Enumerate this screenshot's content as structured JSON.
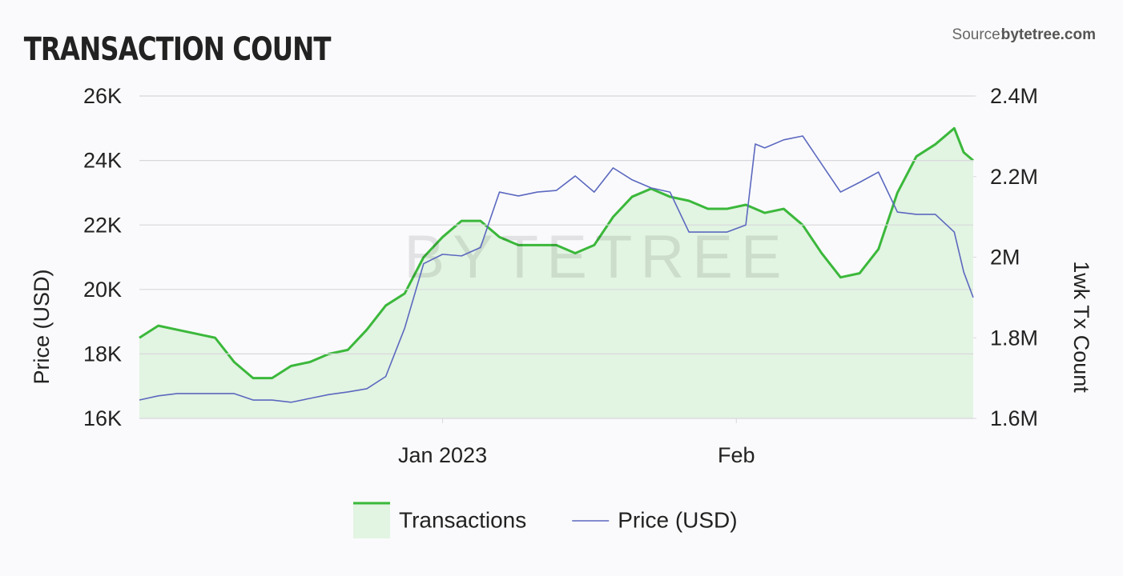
{
  "chart_data": {
    "type": "dual-axis-area-line",
    "title": "TRANSACTION COUNT",
    "source_prefix": "Source:",
    "source_name": "bytetree.com",
    "watermark": "BYTETREE",
    "y_label": "Price (USD)",
    "y2_label": "1wk Tx Count",
    "x": [
      -32,
      -30,
      -28,
      -26,
      -24,
      -22,
      -20,
      -18,
      -16,
      -14,
      -12,
      -10,
      -8,
      -6,
      -4,
      -2,
      0,
      2,
      4,
      6,
      8,
      10,
      12,
      14,
      16,
      18,
      20,
      22,
      24,
      26,
      28,
      30,
      32,
      33,
      34,
      36,
      38,
      40,
      42,
      44,
      46,
      48,
      50,
      52,
      54,
      55,
      56
    ],
    "xlim": [
      -32,
      56
    ],
    "xticks": [
      {
        "value": 0,
        "label": "Jan 2023"
      },
      {
        "value": 31,
        "label": "Feb"
      }
    ],
    "ylim": [
      16000,
      26000
    ],
    "yticks": [
      {
        "value": 16000,
        "label": "16K"
      },
      {
        "value": 18000,
        "label": "18K"
      },
      {
        "value": 20000,
        "label": "20K"
      },
      {
        "value": 22000,
        "label": "22K"
      },
      {
        "value": 24000,
        "label": "24K"
      },
      {
        "value": 26000,
        "label": "26K"
      }
    ],
    "y2lim": [
      1600000,
      2400000
    ],
    "y2ticks": [
      {
        "value": 1600000,
        "label": "1.6M"
      },
      {
        "value": 1800000,
        "label": "1.8M"
      },
      {
        "value": 2000000,
        "label": "2M"
      },
      {
        "value": 2200000,
        "label": "2.2M"
      },
      {
        "value": 2400000,
        "label": "2.4M"
      }
    ],
    "grid": true,
    "series": [
      {
        "name": "Transactions",
        "type": "area",
        "axis": "y2",
        "color": "#3bb83b",
        "fill": "#e2f4e2",
        "values": [
          1800000,
          1830000,
          1820000,
          1810000,
          1800000,
          1740000,
          1700000,
          1700000,
          1730000,
          1740000,
          1760000,
          1770000,
          1820000,
          1880000,
          1910000,
          2000000,
          2050000,
          2090000,
          2090000,
          2050000,
          2030000,
          2030000,
          2030000,
          2010000,
          2030000,
          2100000,
          2150000,
          2170000,
          2150000,
          2140000,
          2120000,
          2120000,
          2130000,
          2120000,
          2110000,
          2120000,
          2080000,
          2010000,
          1950000,
          1960000,
          2020000,
          2160000,
          2250000,
          2280000,
          2320000,
          2260000,
          2240000
        ]
      },
      {
        "name": "Price (USD)",
        "type": "line",
        "axis": "y",
        "color": "#5b68bf",
        "values": [
          16570,
          16700,
          16770,
          16770,
          16770,
          16770,
          16570,
          16570,
          16500,
          16620,
          16740,
          16820,
          16920,
          17300,
          18800,
          20800,
          21090,
          21040,
          21300,
          23020,
          22900,
          23020,
          23070,
          23520,
          23020,
          23770,
          23400,
          23150,
          23020,
          21780,
          21780,
          21780,
          22000,
          24510,
          24390,
          24640,
          24760,
          23890,
          23020,
          23320,
          23640,
          22400,
          22330,
          22330,
          21780,
          20540,
          19750
        ]
      }
    ]
  }
}
